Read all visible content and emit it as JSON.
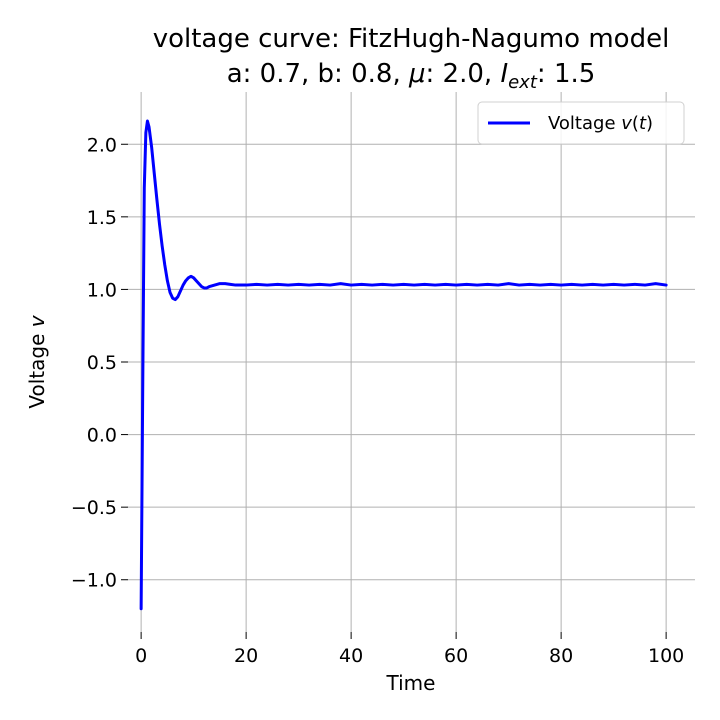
{
  "chart_data": {
    "type": "line",
    "title_line1": "voltage curve: FitzHugh-Nagumo model",
    "title_line2": {
      "a_label": "a: ",
      "a_value": "0.7",
      "b_label": "b: ",
      "b_value": "0.8",
      "mu_symbol": "μ",
      "mu_value": "2.0",
      "iext_symbol": "I",
      "iext_subscript": "ext",
      "iext_value": "1.5"
    },
    "xlabel": "Time",
    "ylabel_text": "Voltage ",
    "ylabel_symbol": "v",
    "xlim": [
      -2.5,
      105.5
    ],
    "ylim": [
      -1.36,
      2.36
    ],
    "xticks": [
      0,
      20,
      40,
      60,
      80,
      100
    ],
    "xtick_labels": [
      "0",
      "20",
      "40",
      "60",
      "80",
      "100"
    ],
    "yticks": [
      -1.0,
      -0.5,
      0.0,
      0.5,
      1.0,
      1.5,
      2.0
    ],
    "ytick_labels": [
      "−1.0",
      "−0.5",
      "0.0",
      "0.5",
      "1.0",
      "1.5",
      "2.0"
    ],
    "grid": true,
    "legend": {
      "position": "top-right",
      "label_text": "Voltage ",
      "label_symbol": "v",
      "label_suffix_open": "(",
      "label_arg": "t",
      "label_suffix_close": ")"
    },
    "series": [
      {
        "name": "Voltage v(t)",
        "color": "#0000ff",
        "x": [
          0,
          0.3,
          0.6,
          0.9,
          1.2,
          1.5,
          2,
          2.5,
          3,
          3.5,
          4,
          4.5,
          5,
          5.5,
          6,
          6.5,
          7,
          7.5,
          8,
          8.5,
          9,
          9.5,
          10,
          10.5,
          11,
          11.5,
          12,
          12.5,
          13,
          14,
          15,
          16,
          17,
          18,
          19,
          20,
          22,
          24,
          26,
          28,
          30,
          32,
          34,
          36,
          38,
          40,
          42,
          44,
          46,
          48,
          50,
          52,
          54,
          56,
          58,
          60,
          62,
          64,
          66,
          68,
          70,
          72,
          74,
          76,
          78,
          80,
          82,
          84,
          86,
          88,
          90,
          92,
          94,
          96,
          98,
          100
        ],
        "y": [
          -1.2,
          0.3,
          1.7,
          2.08,
          2.16,
          2.12,
          1.98,
          1.8,
          1.62,
          1.45,
          1.3,
          1.17,
          1.06,
          0.98,
          0.94,
          0.93,
          0.95,
          0.99,
          1.03,
          1.06,
          1.08,
          1.09,
          1.08,
          1.06,
          1.04,
          1.02,
          1.01,
          1.01,
          1.02,
          1.03,
          1.04,
          1.04,
          1.035,
          1.03,
          1.03,
          1.03,
          1.035,
          1.03,
          1.035,
          1.03,
          1.035,
          1.03,
          1.035,
          1.03,
          1.04,
          1.03,
          1.035,
          1.03,
          1.035,
          1.03,
          1.035,
          1.03,
          1.035,
          1.03,
          1.035,
          1.03,
          1.035,
          1.03,
          1.035,
          1.03,
          1.04,
          1.03,
          1.035,
          1.03,
          1.035,
          1.03,
          1.035,
          1.03,
          1.035,
          1.03,
          1.035,
          1.03,
          1.035,
          1.03,
          1.04,
          1.03
        ]
      }
    ]
  }
}
